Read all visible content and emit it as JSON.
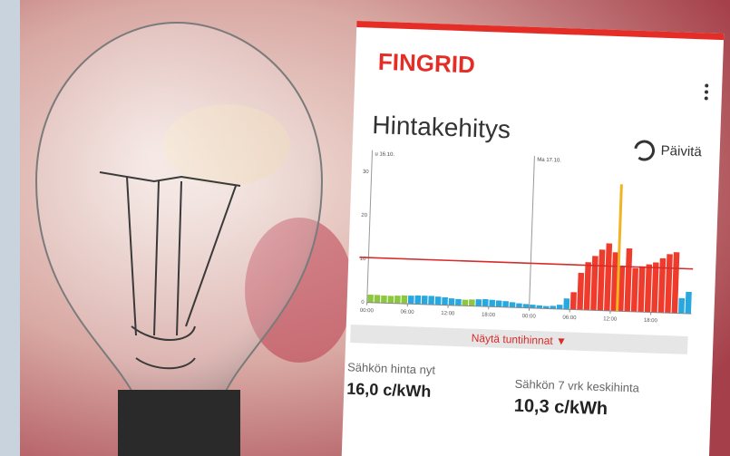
{
  "app": {
    "brand": "FINGRID",
    "refresh": "Päivitä",
    "show_hourly": "Näytä tuntihinnat ▼",
    "price_now_label": "Sähkön hinta nyt",
    "price_now": "16,0 c/kWh",
    "average_label": "Sähkön 7 vrk keskihinta",
    "average_value": "10,3 c/kWh"
  },
  "chart_data": {
    "type": "bar",
    "title": "Hintakehitys",
    "x": [
      0,
      1,
      2,
      3,
      4,
      5,
      6,
      7,
      8,
      9,
      10,
      11,
      12,
      13,
      14,
      15,
      16,
      17,
      18,
      19,
      20,
      21,
      22,
      23,
      24,
      25,
      26,
      27,
      28,
      29,
      30,
      31,
      32,
      33,
      34,
      35,
      36,
      37,
      38,
      39,
      40,
      41,
      42,
      43,
      44,
      45,
      46,
      47
    ],
    "values": [
      1.8,
      1.8,
      1.7,
      1.7,
      1.8,
      1.9,
      1.9,
      2.0,
      2.0,
      2.0,
      1.9,
      1.8,
      1.6,
      1.5,
      1.4,
      1.5,
      1.6,
      1.7,
      1.6,
      1.5,
      1.4,
      1.2,
      1.0,
      0.9,
      0.8,
      0.7,
      0.6,
      0.7,
      1.0,
      2.5,
      4.0,
      8.5,
      11.0,
      12.5,
      14.0,
      15.5,
      13.5,
      10.5,
      14.5,
      10.0,
      10.5,
      11.0,
      11.5,
      12.5,
      13.5,
      14.0,
      3.5,
      5.0
    ],
    "colors": [
      "#8dc63f",
      "#8dc63f",
      "#8dc63f",
      "#8dc63f",
      "#8dc63f",
      "#8dc63f",
      "#29a8e0",
      "#29a8e0",
      "#29a8e0",
      "#29a8e0",
      "#29a8e0",
      "#29a8e0",
      "#29a8e0",
      "#29a8e0",
      "#8dc63f",
      "#8dc63f",
      "#29a8e0",
      "#29a8e0",
      "#29a8e0",
      "#29a8e0",
      "#29a8e0",
      "#29a8e0",
      "#29a8e0",
      "#29a8e0",
      "#29a8e0",
      "#29a8e0",
      "#29a8e0",
      "#29a8e0",
      "#29a8e0",
      "#29a8e0",
      "#ef3b2c",
      "#ef3b2c",
      "#ef3b2c",
      "#ef3b2c",
      "#ef3b2c",
      "#ef3b2c",
      "#ef3b2c",
      "#ef3b2c",
      "#ef3b2c",
      "#ef3b2c",
      "#ef3b2c",
      "#ef3b2c",
      "#ef3b2c",
      "#ef3b2c",
      "#ef3b2c",
      "#ef3b2c",
      "#29a8e0",
      "#29a8e0"
    ],
    "average": 10.3,
    "average_color": "#d92b2b",
    "markers": [
      {
        "x": 0,
        "label": "u 16.10."
      },
      {
        "x": 24,
        "label": "Ma 17.10."
      }
    ],
    "xlim": [
      0,
      48
    ],
    "xticks": [
      {
        "value": 0,
        "label": "00:00"
      },
      {
        "value": 6,
        "label": "06:00"
      },
      {
        "value": 12,
        "label": "12:00"
      },
      {
        "value": 18,
        "label": "18:00"
      },
      {
        "value": 24,
        "label": "00:00"
      },
      {
        "value": 30,
        "label": "06:00"
      },
      {
        "value": 36,
        "label": "12:00"
      },
      {
        "value": 42,
        "label": "18:00"
      }
    ],
    "ylim": [
      0,
      35
    ],
    "yticks": [
      0,
      10,
      20,
      30
    ],
    "grid": false
  }
}
